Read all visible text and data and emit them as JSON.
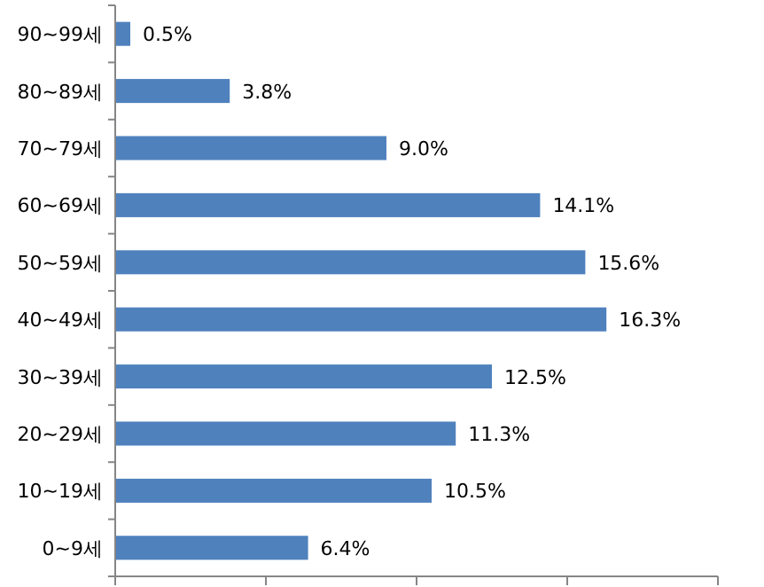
{
  "chart_data": {
    "type": "bar",
    "orientation": "horizontal",
    "categories": [
      "90~99세",
      "80~89세",
      "70~79세",
      "60~69세",
      "50~59세",
      "40~49세",
      "30~39세",
      "20~29세",
      "10~19세",
      "0~9세"
    ],
    "values": [
      0.5,
      3.8,
      9.0,
      14.1,
      15.6,
      16.3,
      12.5,
      11.3,
      10.5,
      6.4
    ],
    "value_labels": [
      "0.5%",
      "3.8%",
      "9.0%",
      "14.1%",
      "15.6%",
      "16.3%",
      "12.5%",
      "11.3%",
      "10.5%",
      "6.4%"
    ],
    "color": "#4f81bd",
    "xlim": [
      0,
      20
    ],
    "xticks": [
      {
        "value": 0,
        "label": null
      },
      {
        "value": 5,
        "label": null
      },
      {
        "value": 10,
        "label": null
      },
      {
        "value": 15,
        "label": null
      },
      {
        "value": 20,
        "label": null
      }
    ],
    "tick_labels": "y"
  }
}
